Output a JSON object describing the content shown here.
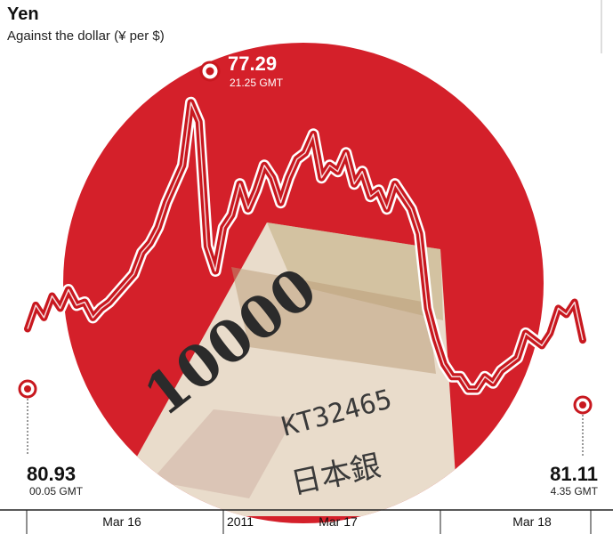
{
  "chart_data": {
    "type": "line",
    "title": "Yen",
    "subtitle": "Against the dollar (¥ per $)",
    "x_ticks": [
      "Mar 16",
      "2011",
      "Mar 17",
      "Mar 18"
    ],
    "y_inverted": true,
    "ylim": [
      76.5,
      83.8
    ],
    "series": [
      {
        "x": [
          0,
          1,
          2,
          3,
          4,
          5,
          6,
          7,
          8,
          9,
          10,
          11,
          12,
          13,
          14,
          15,
          16,
          17,
          18,
          19,
          20,
          21,
          22,
          23,
          24,
          25,
          26,
          27,
          28,
          29,
          30,
          31,
          32,
          33,
          34,
          35,
          36,
          37,
          38,
          39,
          40,
          41,
          42,
          43,
          44,
          45,
          46,
          47,
          48,
          49,
          50,
          51,
          52,
          53,
          54,
          55,
          56,
          57,
          58,
          59,
          60,
          61,
          62,
          63,
          64,
          65,
          66,
          67,
          68
        ],
        "values": [
          80.93,
          80.55,
          80.75,
          80.4,
          80.6,
          80.3,
          80.55,
          80.5,
          80.75,
          80.6,
          80.5,
          80.35,
          80.2,
          80.05,
          79.7,
          79.55,
          79.3,
          78.9,
          78.6,
          78.3,
          77.29,
          77.6,
          79.6,
          80.0,
          79.3,
          79.1,
          78.6,
          79.0,
          78.7,
          78.3,
          78.5,
          78.9,
          78.5,
          78.2,
          78.1,
          77.8,
          78.5,
          78.3,
          78.4,
          78.1,
          78.6,
          78.4,
          78.8,
          78.7,
          79.0,
          78.6,
          78.8,
          79.0,
          79.4,
          80.6,
          81.1,
          81.5,
          81.7,
          81.7,
          81.9,
          81.9,
          81.7,
          81.8,
          81.6,
          81.5,
          81.4,
          81.0,
          81.1,
          81.2,
          81.0,
          80.6,
          80.7,
          80.5,
          81.11
        ]
      }
    ],
    "annotations": [
      {
        "value": "77.29",
        "time": "21.25 GMT"
      },
      {
        "value": "80.93",
        "time": "00.05 GMT"
      },
      {
        "value": "81.11",
        "time": "4.35 GMT"
      }
    ]
  },
  "colors": {
    "red_circle": "#d4202a",
    "line": "#c8181f",
    "background": "#ffffff"
  }
}
